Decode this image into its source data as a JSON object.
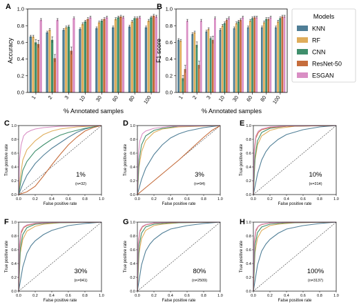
{
  "colors": {
    "KNN": "#4f7e96",
    "RF": "#dfad5b",
    "CNN": "#3f8f6c",
    "ResNet-50": "#c66d3c",
    "ESGAN": "#d98ec4"
  },
  "legend": {
    "title": "Models",
    "entries": [
      "KNN",
      "RF",
      "CNN",
      "ResNet-50",
      "ESGAN"
    ]
  },
  "chart_data": [
    {
      "panel": "A",
      "type": "bar",
      "ylabel": "Accuracy",
      "xlabel": "% Annotated samples",
      "ylim": [
        0,
        1.0
      ],
      "yticks": [
        "0.0",
        "0.2",
        "0.4",
        "0.6",
        "0.8",
        "1.0"
      ],
      "categories": [
        "1",
        "2",
        "3",
        "10",
        "30",
        "60",
        "80",
        "100"
      ],
      "series": [
        {
          "name": "KNN",
          "values": [
            0.67,
            0.72,
            0.75,
            0.76,
            0.77,
            0.78,
            0.79,
            0.78
          ]
        },
        {
          "name": "RF",
          "values": [
            0.67,
            0.75,
            0.78,
            0.82,
            0.84,
            0.88,
            0.85,
            0.86
          ]
        },
        {
          "name": "CNN",
          "values": [
            0.6,
            0.63,
            0.79,
            0.85,
            0.86,
            0.9,
            0.89,
            0.9
          ]
        },
        {
          "name": "ResNet-50",
          "values": [
            0.58,
            0.41,
            0.5,
            0.88,
            0.88,
            0.91,
            0.89,
            0.92
          ]
        },
        {
          "name": "ESGAN",
          "values": [
            0.87,
            0.87,
            0.89,
            0.9,
            0.9,
            0.9,
            0.9,
            0.91
          ]
        }
      ]
    },
    {
      "panel": "B",
      "type": "bar",
      "ylabel": "F1 score",
      "xlabel": "% Annotated samples",
      "ylim": [
        0,
        1.0
      ],
      "yticks": [
        "0.0",
        "0.2",
        "0.4",
        "0.6",
        "0.8",
        "1.0"
      ],
      "categories": [
        "1",
        "2",
        "3",
        "10",
        "30",
        "60",
        "80",
        "100"
      ],
      "series": [
        {
          "name": "KNN",
          "values": [
            0.63,
            0.7,
            0.73,
            0.75,
            0.77,
            0.78,
            0.78,
            0.78
          ]
        },
        {
          "name": "RF",
          "values": [
            0.62,
            0.72,
            0.76,
            0.8,
            0.83,
            0.86,
            0.84,
            0.85
          ]
        },
        {
          "name": "CNN",
          "values": [
            0.17,
            0.57,
            0.65,
            0.83,
            0.85,
            0.89,
            0.88,
            0.89
          ]
        },
        {
          "name": "ResNet-50",
          "values": [
            0.28,
            0.33,
            0.63,
            0.87,
            0.87,
            0.9,
            0.88,
            0.91
          ]
        },
        {
          "name": "ESGAN",
          "values": [
            0.86,
            0.86,
            0.89,
            0.89,
            0.9,
            0.9,
            0.9,
            0.91
          ]
        }
      ]
    },
    {
      "panel": "C",
      "type": "line",
      "xlabel": "False positive rate",
      "ylabel": "True positive rate",
      "xlim": [
        0,
        1
      ],
      "ylim": [
        0,
        1
      ],
      "ticks": [
        "0.0",
        "0.2",
        "0.4",
        "0.6",
        "0.8",
        "1.0"
      ],
      "annotation": "1%",
      "n": "(n=32)",
      "series": [
        {
          "name": "KNN",
          "x": [
            0,
            0.05,
            0.1,
            0.2,
            0.3,
            0.4,
            0.5,
            0.6,
            0.7,
            0.8,
            0.9,
            1
          ],
          "y": [
            0,
            0.15,
            0.28,
            0.45,
            0.57,
            0.67,
            0.75,
            0.83,
            0.9,
            0.95,
            0.98,
            1
          ]
        },
        {
          "name": "RF",
          "x": [
            0,
            0.02,
            0.05,
            0.1,
            0.2,
            0.3,
            0.4,
            0.5,
            0.7,
            1
          ],
          "y": [
            0,
            0.25,
            0.5,
            0.65,
            0.78,
            0.87,
            0.92,
            0.95,
            0.98,
            1
          ]
        },
        {
          "name": "CNN",
          "x": [
            0,
            0.05,
            0.1,
            0.2,
            0.3,
            0.4,
            0.5,
            0.6,
            0.8,
            1
          ],
          "y": [
            0,
            0.35,
            0.48,
            0.63,
            0.72,
            0.8,
            0.86,
            0.9,
            0.96,
            1
          ]
        },
        {
          "name": "ResNet-50",
          "x": [
            0,
            0.1,
            0.2,
            0.3,
            0.4,
            0.5,
            0.6,
            0.7,
            0.8,
            0.9,
            1
          ],
          "y": [
            0,
            0.04,
            0.12,
            0.27,
            0.43,
            0.58,
            0.72,
            0.83,
            0.92,
            0.97,
            1
          ]
        },
        {
          "name": "ESGAN",
          "x": [
            0,
            0.01,
            0.03,
            0.06,
            0.1,
            0.15,
            0.2,
            0.3,
            0.5,
            1
          ],
          "y": [
            0,
            0.5,
            0.72,
            0.85,
            0.9,
            0.93,
            0.95,
            0.97,
            0.99,
            1
          ]
        }
      ]
    },
    {
      "panel": "D",
      "type": "line",
      "xlabel": "False positive rate",
      "ylabel": "True positive rate",
      "xlim": [
        0,
        1
      ],
      "ylim": [
        0,
        1
      ],
      "ticks": [
        "0.0",
        "0.2",
        "0.4",
        "0.6",
        "0.8",
        "1.0"
      ],
      "annotation": "3%",
      "n": "(n=94)",
      "series": [
        {
          "name": "KNN",
          "x": [
            0,
            0.05,
            0.1,
            0.2,
            0.3,
            0.4,
            0.5,
            0.6,
            0.8,
            1
          ],
          "y": [
            0,
            0.22,
            0.38,
            0.58,
            0.72,
            0.82,
            0.88,
            0.92,
            0.97,
            1
          ]
        },
        {
          "name": "RF",
          "x": [
            0,
            0.02,
            0.05,
            0.1,
            0.2,
            0.3,
            0.5,
            1
          ],
          "y": [
            0,
            0.4,
            0.62,
            0.78,
            0.9,
            0.95,
            0.98,
            1
          ]
        },
        {
          "name": "CNN",
          "x": [
            0,
            0.02,
            0.05,
            0.1,
            0.2,
            0.3,
            0.5,
            1
          ],
          "y": [
            0,
            0.5,
            0.72,
            0.85,
            0.93,
            0.96,
            0.99,
            1
          ]
        },
        {
          "name": "ResNet-50",
          "x": [
            0,
            0.1,
            0.2,
            0.3,
            0.4,
            0.5,
            0.6,
            0.7,
            0.8,
            0.9,
            1
          ],
          "y": [
            0,
            0.1,
            0.2,
            0.3,
            0.4,
            0.5,
            0.61,
            0.72,
            0.83,
            0.93,
            1
          ]
        },
        {
          "name": "ESGAN",
          "x": [
            0,
            0.01,
            0.03,
            0.06,
            0.1,
            0.2,
            0.4,
            1
          ],
          "y": [
            0,
            0.55,
            0.78,
            0.88,
            0.92,
            0.96,
            0.99,
            1
          ]
        }
      ]
    },
    {
      "panel": "E",
      "type": "line",
      "xlabel": "False positive rate",
      "ylabel": "True positive rate",
      "xlim": [
        0,
        1
      ],
      "ylim": [
        0,
        1
      ],
      "ticks": [
        "0.0",
        "0.2",
        "0.4",
        "0.6",
        "0.8",
        "1.0"
      ],
      "annotation": "10%",
      "n": "(n=314)",
      "series": [
        {
          "name": "KNN",
          "x": [
            0,
            0.05,
            0.1,
            0.15,
            0.2,
            0.3,
            0.4,
            0.6,
            0.8,
            1
          ],
          "y": [
            0,
            0.3,
            0.5,
            0.62,
            0.7,
            0.8,
            0.87,
            0.94,
            0.98,
            1
          ]
        },
        {
          "name": "RF",
          "x": [
            0,
            0.02,
            0.05,
            0.1,
            0.2,
            0.3,
            0.5,
            1
          ],
          "y": [
            0,
            0.5,
            0.72,
            0.85,
            0.93,
            0.96,
            0.99,
            1
          ]
        },
        {
          "name": "CNN",
          "x": [
            0,
            0.02,
            0.05,
            0.1,
            0.2,
            0.4,
            1
          ],
          "y": [
            0,
            0.55,
            0.78,
            0.9,
            0.96,
            0.99,
            1
          ]
        },
        {
          "name": "ResNet-50",
          "x": [
            0,
            0.01,
            0.03,
            0.06,
            0.1,
            0.2,
            0.4,
            1
          ],
          "y": [
            0,
            0.6,
            0.82,
            0.9,
            0.94,
            0.97,
            0.99,
            1
          ]
        },
        {
          "name": "ESGAN",
          "x": [
            0,
            0.01,
            0.03,
            0.06,
            0.1,
            0.2,
            0.4,
            1
          ],
          "y": [
            0,
            0.65,
            0.85,
            0.92,
            0.95,
            0.98,
            0.995,
            1
          ]
        }
      ]
    },
    {
      "panel": "F",
      "type": "line",
      "xlabel": "False positive rate",
      "ylabel": "True positive rate",
      "xlim": [
        0,
        1
      ],
      "ylim": [
        0,
        1
      ],
      "ticks": [
        "0.0",
        "0.2",
        "0.4",
        "0.6",
        "0.8",
        "1.0"
      ],
      "annotation": "30%",
      "n": "(n=941)",
      "series": [
        {
          "name": "KNN",
          "x": [
            0,
            0.05,
            0.1,
            0.15,
            0.2,
            0.3,
            0.4,
            0.6,
            0.8,
            1
          ],
          "y": [
            0,
            0.35,
            0.55,
            0.66,
            0.73,
            0.82,
            0.88,
            0.95,
            0.98,
            1
          ]
        },
        {
          "name": "RF",
          "x": [
            0,
            0.02,
            0.05,
            0.1,
            0.2,
            0.3,
            0.5,
            1
          ],
          "y": [
            0,
            0.55,
            0.75,
            0.87,
            0.94,
            0.97,
            0.99,
            1
          ]
        },
        {
          "name": "CNN",
          "x": [
            0,
            0.02,
            0.05,
            0.1,
            0.2,
            0.4,
            1
          ],
          "y": [
            0,
            0.62,
            0.82,
            0.92,
            0.97,
            0.99,
            1
          ]
        },
        {
          "name": "ResNet-50",
          "x": [
            0,
            0.01,
            0.03,
            0.06,
            0.1,
            0.2,
            0.4,
            1
          ],
          "y": [
            0,
            0.62,
            0.84,
            0.92,
            0.95,
            0.98,
            0.995,
            1
          ]
        },
        {
          "name": "ESGAN",
          "x": [
            0,
            0.01,
            0.03,
            0.06,
            0.1,
            0.2,
            0.4,
            1
          ],
          "y": [
            0,
            0.68,
            0.87,
            0.93,
            0.96,
            0.985,
            0.997,
            1
          ]
        }
      ]
    },
    {
      "panel": "G",
      "type": "line",
      "xlabel": "False positive rate",
      "ylabel": "True positive rate",
      "xlim": [
        0,
        1
      ],
      "ylim": [
        0,
        1
      ],
      "ticks": [
        "0.0",
        "0.2",
        "0.4",
        "0.6",
        "0.8",
        "1.0"
      ],
      "annotation": "80%",
      "n": "(n=2509)",
      "series": [
        {
          "name": "KNN",
          "x": [
            0,
            0.05,
            0.1,
            0.15,
            0.2,
            0.3,
            0.4,
            0.6,
            0.8,
            1
          ],
          "y": [
            0,
            0.38,
            0.58,
            0.68,
            0.75,
            0.84,
            0.9,
            0.95,
            0.98,
            1
          ]
        },
        {
          "name": "RF",
          "x": [
            0,
            0.02,
            0.05,
            0.1,
            0.2,
            0.3,
            0.5,
            1
          ],
          "y": [
            0,
            0.55,
            0.76,
            0.88,
            0.95,
            0.97,
            0.99,
            1
          ]
        },
        {
          "name": "CNN",
          "x": [
            0,
            0.02,
            0.05,
            0.1,
            0.2,
            0.4,
            1
          ],
          "y": [
            0,
            0.65,
            0.84,
            0.93,
            0.97,
            0.99,
            1
          ]
        },
        {
          "name": "ResNet-50",
          "x": [
            0,
            0.01,
            0.03,
            0.06,
            0.1,
            0.2,
            0.4,
            1
          ],
          "y": [
            0,
            0.66,
            0.86,
            0.93,
            0.96,
            0.985,
            0.997,
            1
          ]
        },
        {
          "name": "ESGAN",
          "x": [
            0,
            0.01,
            0.03,
            0.06,
            0.1,
            0.2,
            0.4,
            1
          ],
          "y": [
            0,
            0.7,
            0.88,
            0.94,
            0.965,
            0.99,
            0.998,
            1
          ]
        }
      ]
    },
    {
      "panel": "H",
      "type": "line",
      "xlabel": "False positive rate",
      "ylabel": "True positive rate",
      "xlim": [
        0,
        1
      ],
      "ylim": [
        0,
        1
      ],
      "ticks": [
        "0.0",
        "0.2",
        "0.4",
        "0.6",
        "0.8",
        "1.0"
      ],
      "annotation": "100%",
      "n": "(n=3137)",
      "series": [
        {
          "name": "KNN",
          "x": [
            0,
            0.05,
            0.1,
            0.15,
            0.2,
            0.3,
            0.4,
            0.6,
            0.8,
            1
          ],
          "y": [
            0,
            0.38,
            0.58,
            0.68,
            0.75,
            0.84,
            0.9,
            0.95,
            0.98,
            1
          ]
        },
        {
          "name": "RF",
          "x": [
            0,
            0.02,
            0.05,
            0.1,
            0.2,
            0.3,
            0.5,
            1
          ],
          "y": [
            0,
            0.56,
            0.77,
            0.88,
            0.95,
            0.97,
            0.99,
            1
          ]
        },
        {
          "name": "CNN",
          "x": [
            0,
            0.02,
            0.05,
            0.1,
            0.2,
            0.4,
            1
          ],
          "y": [
            0,
            0.66,
            0.85,
            0.93,
            0.97,
            0.99,
            1
          ]
        },
        {
          "name": "ResNet-50",
          "x": [
            0,
            0.01,
            0.03,
            0.06,
            0.1,
            0.2,
            0.4,
            1
          ],
          "y": [
            0,
            0.67,
            0.87,
            0.94,
            0.965,
            0.988,
            0.997,
            1
          ]
        },
        {
          "name": "ESGAN",
          "x": [
            0,
            0.01,
            0.03,
            0.06,
            0.1,
            0.2,
            0.4,
            1
          ],
          "y": [
            0,
            0.72,
            0.89,
            0.945,
            0.97,
            0.99,
            0.998,
            1
          ]
        }
      ]
    }
  ]
}
